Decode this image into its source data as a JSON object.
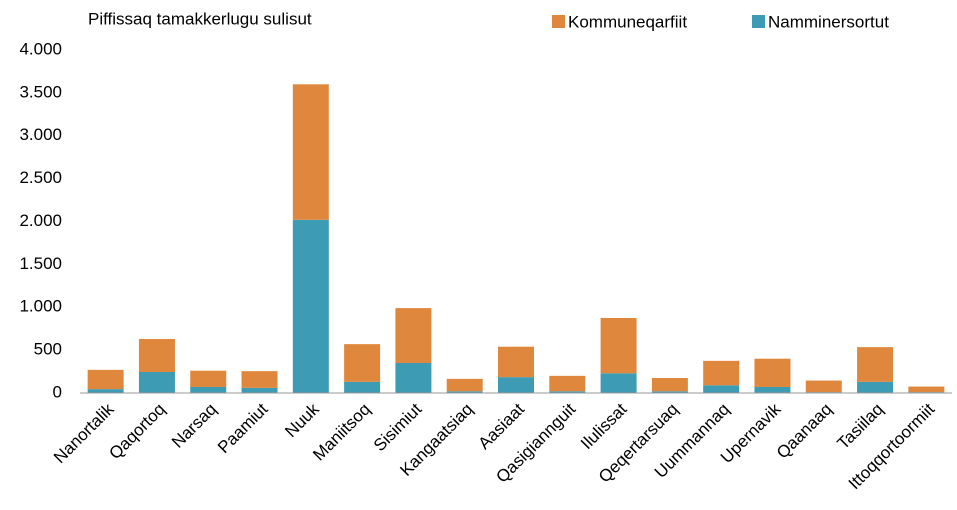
{
  "chart_data": {
    "type": "bar",
    "stacked": true,
    "title": "Piffissaq tamakkerlugu sulisut",
    "categories": [
      "Nanortalik",
      "Qaqortoq",
      "Narsaq",
      "Paamiut",
      "Nuuk",
      "Maniitsoq",
      "Sisimiut",
      "Kangaatsiaq",
      "Aasiaat",
      "Qasigiannguit",
      "Ilulissat",
      "Qeqertarsuaq",
      "Uummannaq",
      "Upernavik",
      "Qaanaaq",
      "Tasiilaq",
      "Ittoqqortoormiit"
    ],
    "series": [
      {
        "name": "Kommuneqarfiit",
        "color": "#e0873e",
        "values": [
          225,
          385,
          190,
          195,
          1580,
          440,
          640,
          145,
          355,
          180,
          645,
          155,
          285,
          330,
          135,
          405,
          65
        ]
      },
      {
        "name": "Namminersortut",
        "color": "#3d9bb3",
        "values": [
          45,
          245,
          70,
          60,
          2020,
          130,
          350,
          20,
          185,
          20,
          230,
          20,
          90,
          70,
          10,
          130,
          10
        ]
      }
    ],
    "ylim": [
      0,
      4000
    ],
    "yticks": [
      0,
      500,
      {
        "value": 1000,
        "label": "1.000"
      },
      {
        "value": 1500,
        "label": "1.500"
      },
      {
        "value": 2000,
        "label": "2.000"
      },
      {
        "value": 2500,
        "label": "2.500"
      },
      {
        "value": 3000,
        "label": "3.000"
      },
      {
        "value": 3500,
        "label": "3.500"
      },
      {
        "value": 4000,
        "label": "4.000"
      }
    ],
    "grid": false
  }
}
